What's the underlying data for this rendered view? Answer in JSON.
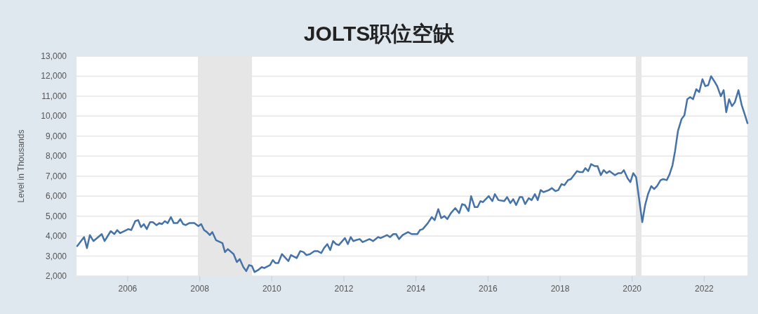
{
  "chart_data": {
    "type": "line",
    "title": "JOLTS职位空缺",
    "ylabel": "Level in Thousands",
    "color": "#4572a7",
    "grid": "y",
    "xlim": [
      2004.58,
      2023.2
    ],
    "xticks": [
      2006,
      2008,
      2010,
      2012,
      2014,
      2016,
      2018,
      2020,
      2022
    ],
    "ylim": [
      2000,
      13000
    ],
    "yticks": [
      {
        "value": 2000,
        "label": "2,000"
      },
      {
        "value": 3000,
        "label": "3,000"
      },
      {
        "value": 4000,
        "label": "4,000"
      },
      {
        "value": 5000,
        "label": "5,000"
      },
      {
        "value": 6000,
        "label": "6,000"
      },
      {
        "value": 7000,
        "label": "7,000"
      },
      {
        "value": 8000,
        "label": "8,000"
      },
      {
        "value": 9000,
        "label": "9,000"
      },
      {
        "value": 10000,
        "label": "10,000"
      },
      {
        "value": 11000,
        "label": "11,000"
      },
      {
        "value": 12000,
        "label": "12,000"
      },
      {
        "value": 13000,
        "label": "13,000"
      }
    ],
    "bands": [
      {
        "axis": "x",
        "from": 2007.95,
        "to": 2009.45,
        "color": "#e6e6e6"
      },
      {
        "axis": "x",
        "from": 2020.1,
        "to": 2020.26,
        "color": "#e6e6e6"
      }
    ],
    "x": [
      2004.6,
      2004.79,
      2004.87,
      2004.95,
      2005.05,
      2005.28,
      2005.36,
      2005.53,
      2005.63,
      2005.71,
      2005.79,
      2006.02,
      2006.1,
      2006.21,
      2006.29,
      2006.37,
      2006.45,
      2006.53,
      2006.62,
      2006.7,
      2006.8,
      2006.88,
      2006.95,
      2007.03,
      2007.11,
      2007.2,
      2007.28,
      2007.38,
      2007.46,
      2007.54,
      2007.61,
      2007.71,
      2007.85,
      2007.96,
      2008.04,
      2008.12,
      2008.2,
      2008.28,
      2008.35,
      2008.45,
      2008.63,
      2008.7,
      2008.78,
      2008.94,
      2009.03,
      2009.11,
      2009.21,
      2009.29,
      2009.37,
      2009.45,
      2009.52,
      2009.62,
      2009.72,
      2009.79,
      2009.95,
      2010.03,
      2010.1,
      2010.18,
      2010.28,
      2010.46,
      2010.53,
      2010.69,
      2010.79,
      2010.88,
      2010.96,
      2011.06,
      2011.18,
      2011.27,
      2011.37,
      2011.45,
      2011.54,
      2011.62,
      2011.7,
      2011.78,
      2011.86,
      2012.03,
      2012.11,
      2012.19,
      2012.26,
      2012.34,
      2012.44,
      2012.52,
      2012.71,
      2012.81,
      2012.95,
      2013.02,
      2013.2,
      2013.28,
      2013.37,
      2013.45,
      2013.53,
      2013.63,
      2013.78,
      2013.88,
      2014.04,
      2014.11,
      2014.19,
      2014.33,
      2014.44,
      2014.52,
      2014.62,
      2014.7,
      2014.79,
      2014.87,
      2014.97,
      2015.09,
      2015.2,
      2015.28,
      2015.36,
      2015.46,
      2015.53,
      2015.63,
      2015.71,
      2015.79,
      2015.86,
      2016.02,
      2016.12,
      2016.19,
      2016.29,
      2016.45,
      2016.53,
      2016.62,
      2016.7,
      2016.78,
      2016.88,
      2016.95,
      2017.03,
      2017.13,
      2017.21,
      2017.3,
      2017.38,
      2017.46,
      2017.54,
      2017.69,
      2017.77,
      2017.87,
      2017.95,
      2018.04,
      2018.12,
      2018.22,
      2018.3,
      2018.47,
      2018.55,
      2018.63,
      2018.7,
      2018.78,
      2018.86,
      2018.96,
      2019.04,
      2019.13,
      2019.21,
      2019.29,
      2019.37,
      2019.52,
      2019.62,
      2019.7,
      2019.77,
      2019.87,
      2019.95,
      2020.03,
      2020.11,
      2020.28,
      2020.36,
      2020.44,
      2020.53,
      2020.61,
      2020.69,
      2020.79,
      2020.86,
      2020.96,
      2021.04,
      2021.12,
      2021.19,
      2021.27,
      2021.37,
      2021.45,
      2021.53,
      2021.61,
      2021.69,
      2021.78,
      2021.86,
      2021.95,
      2022.03,
      2022.11,
      2022.19,
      2022.28,
      2022.36,
      2022.46,
      2022.54,
      2022.61,
      2022.69,
      2022.77,
      2022.85,
      2022.95,
      2023.04,
      2023.14,
      2023.2
    ],
    "values": [
      3500,
      3950,
      3400,
      4050,
      3750,
      4100,
      3750,
      4250,
      4100,
      4300,
      4150,
      4350,
      4300,
      4750,
      4800,
      4450,
      4600,
      4350,
      4700,
      4700,
      4550,
      4650,
      4600,
      4750,
      4650,
      4950,
      4650,
      4650,
      4850,
      4600,
      4550,
      4650,
      4650,
      4500,
      4600,
      4300,
      4200,
      4050,
      4200,
      3800,
      3650,
      3200,
      3350,
      3100,
      2700,
      2850,
      2450,
      2250,
      2550,
      2500,
      2200,
      2300,
      2450,
      2400,
      2550,
      2800,
      2650,
      2650,
      3100,
      2750,
      3050,
      2900,
      3250,
      3200,
      3050,
      3100,
      3250,
      3250,
      3150,
      3400,
      3600,
      3300,
      3750,
      3600,
      3550,
      3900,
      3600,
      3950,
      3750,
      3800,
      3850,
      3700,
      3850,
      3750,
      3950,
      3900,
      4050,
      3950,
      4100,
      4100,
      3850,
      4050,
      4200,
      4100,
      4100,
      4300,
      4350,
      4650,
      4950,
      4800,
      5350,
      4900,
      5000,
      4850,
      5150,
      5400,
      5150,
      5600,
      5550,
      5250,
      6000,
      5450,
      5450,
      5750,
      5700,
      6000,
      5750,
      6100,
      5800,
      5750,
      5950,
      5650,
      5850,
      5550,
      5950,
      5950,
      5600,
      5900,
      5800,
      6100,
      5800,
      6300,
      6200,
      6300,
      6400,
      6250,
      6300,
      6600,
      6550,
      6800,
      6850,
      7250,
      7200,
      7200,
      7400,
      7250,
      7600,
      7500,
      7500,
      7050,
      7300,
      7150,
      7250,
      7050,
      7150,
      7150,
      7300,
      6900,
      6700,
      7150,
      6950,
      4700,
      5550,
      6100,
      6500,
      6350,
      6500,
      6800,
      6850,
      6800,
      7100,
      7550,
      8250,
      9250,
      9850,
      10050,
      10850,
      10950,
      10850,
      11350,
      11200,
      11850,
      11500,
      11550,
      12000,
      11750,
      11500,
      11000,
      11300,
      10200,
      10850,
      10500,
      10700,
      11300,
      10550,
      10000,
      9650
    ]
  }
}
